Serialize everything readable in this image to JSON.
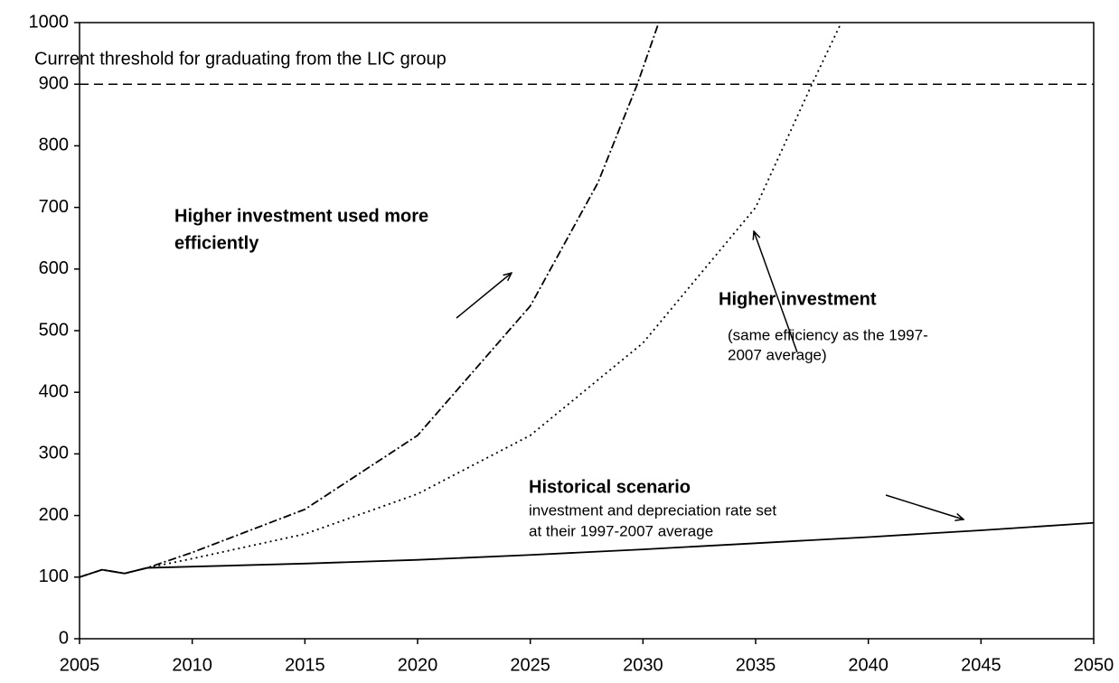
{
  "chart_data": {
    "type": "line",
    "xlim": [
      2005,
      2050
    ],
    "xticks": [
      2005,
      2010,
      2015,
      2020,
      2025,
      2030,
      2035,
      2040,
      2045,
      2050
    ],
    "ylim": [
      0,
      1000
    ],
    "yticks": [
      0,
      100,
      200,
      300,
      400,
      500,
      600,
      700,
      800,
      900,
      1000
    ],
    "threshold": 900,
    "series": [
      {
        "color": "#000000",
        "style": "solid",
        "x": [
          2005,
          2006,
          2007,
          2008,
          2010,
          2015,
          2020,
          2025,
          2030,
          2035,
          2040,
          2045,
          2050
        ],
        "values": [
          100,
          112,
          106,
          115,
          117,
          122,
          128,
          136,
          145,
          155,
          165,
          176,
          188
        ]
      },
      {
        "color": "#000000",
        "style": "dashdot",
        "x": [
          2005,
          2006,
          2007,
          2008,
          2010,
          2015,
          2020,
          2025,
          2028,
          2029.75,
          2030.7
        ],
        "values": [
          100,
          112,
          106,
          115,
          140,
          210,
          330,
          540,
          740,
          900,
          1000
        ]
      },
      {
        "color": "#000000",
        "style": "dotted",
        "x": [
          2005,
          2006,
          2007,
          2008,
          2010,
          2015,
          2020,
          2025,
          2030,
          2035,
          2037.5,
          2038.8
        ],
        "values": [
          100,
          112,
          106,
          115,
          130,
          170,
          235,
          330,
          480,
          700,
          900,
          1000
        ]
      }
    ],
    "annotations": {
      "threshold": "Current threshold for graduating from the LIC group",
      "efficient": [
        "Higher investment used more",
        "efficiently"
      ],
      "higher": "Higher investment",
      "higher_note": [
        "(same efficiency as the 1997-",
        "2007 average)"
      ],
      "historical": "Historical scenario",
      "historical_note": [
        "investment and depreciation rate set",
        "at their 1997-2007 average"
      ]
    }
  }
}
